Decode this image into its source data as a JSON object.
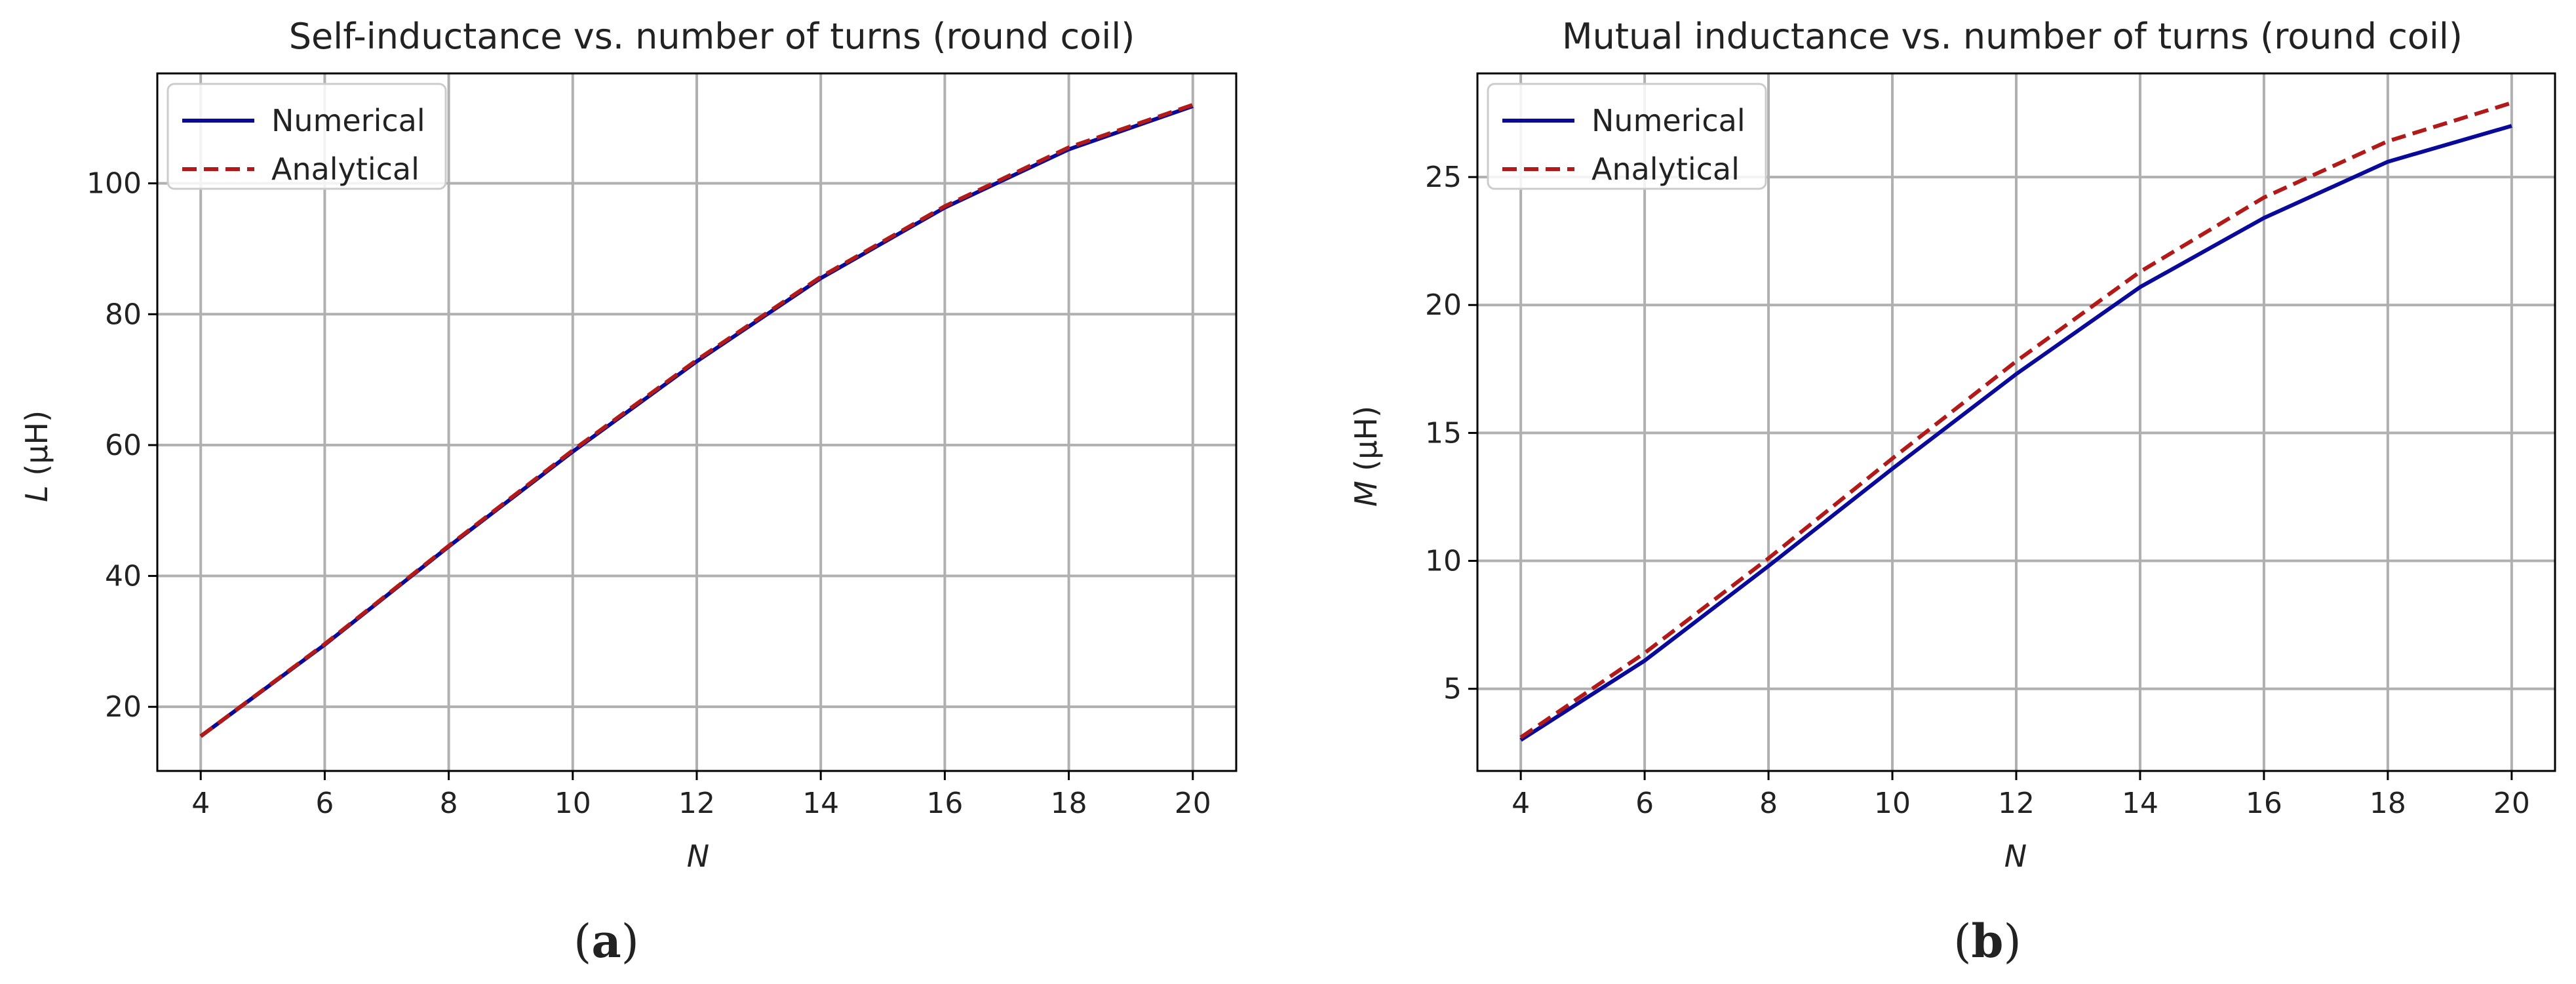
{
  "chart_data": [
    {
      "type": "line",
      "title": "Self-inductance vs. number of turns (round coil)",
      "xlabel": "N",
      "ylabel": "L (μH)",
      "ylabel_var": "L",
      "ylabel_unit": " (μH)",
      "xlim": [
        3.3,
        20.7
      ],
      "ylim": [
        10.2,
        116.8
      ],
      "xticks": [
        4,
        6,
        8,
        10,
        12,
        14,
        16,
        18,
        20
      ],
      "yticks": [
        20,
        40,
        60,
        80,
        100
      ],
      "grid": true,
      "legend_position": "upper-left",
      "x": [
        4,
        6,
        8,
        10,
        12,
        14,
        16,
        18,
        20
      ],
      "series": [
        {
          "name": "Numerical",
          "color": "#0a0a9a",
          "style": "solid",
          "values": [
            15.5,
            29.5,
            44.5,
            59.0,
            72.8,
            85.5,
            96.3,
            105.2,
            111.8
          ]
        },
        {
          "name": "Analytical",
          "color": "#b21a1a",
          "style": "dashed",
          "values": [
            15.5,
            29.6,
            44.6,
            59.2,
            73.0,
            85.7,
            96.5,
            105.5,
            112.0
          ]
        }
      ],
      "caption": "a"
    },
    {
      "type": "line",
      "title": "Mutual inductance vs. number of turns (round coil)",
      "xlabel": "N",
      "ylabel": "M (μH)",
      "ylabel_var": "M",
      "ylabel_unit": " (μH)",
      "xlim": [
        3.3,
        20.7
      ],
      "ylim": [
        1.79,
        29.05
      ],
      "xticks": [
        4,
        6,
        8,
        10,
        12,
        14,
        16,
        18,
        20
      ],
      "yticks": [
        5,
        10,
        15,
        20,
        25
      ],
      "grid": true,
      "legend_position": "upper-left",
      "x": [
        4,
        6,
        8,
        10,
        12,
        14,
        16,
        18,
        20
      ],
      "series": [
        {
          "name": "Numerical",
          "color": "#0a0a9a",
          "style": "solid",
          "values": [
            3.0,
            6.1,
            9.8,
            13.6,
            17.3,
            20.7,
            23.4,
            25.6,
            27.0
          ]
        },
        {
          "name": "Analytical",
          "color": "#b21a1a",
          "style": "dashed",
          "values": [
            3.1,
            6.4,
            10.1,
            14.0,
            17.8,
            21.3,
            24.2,
            26.4,
            27.9
          ]
        }
      ],
      "caption": "b"
    }
  ]
}
